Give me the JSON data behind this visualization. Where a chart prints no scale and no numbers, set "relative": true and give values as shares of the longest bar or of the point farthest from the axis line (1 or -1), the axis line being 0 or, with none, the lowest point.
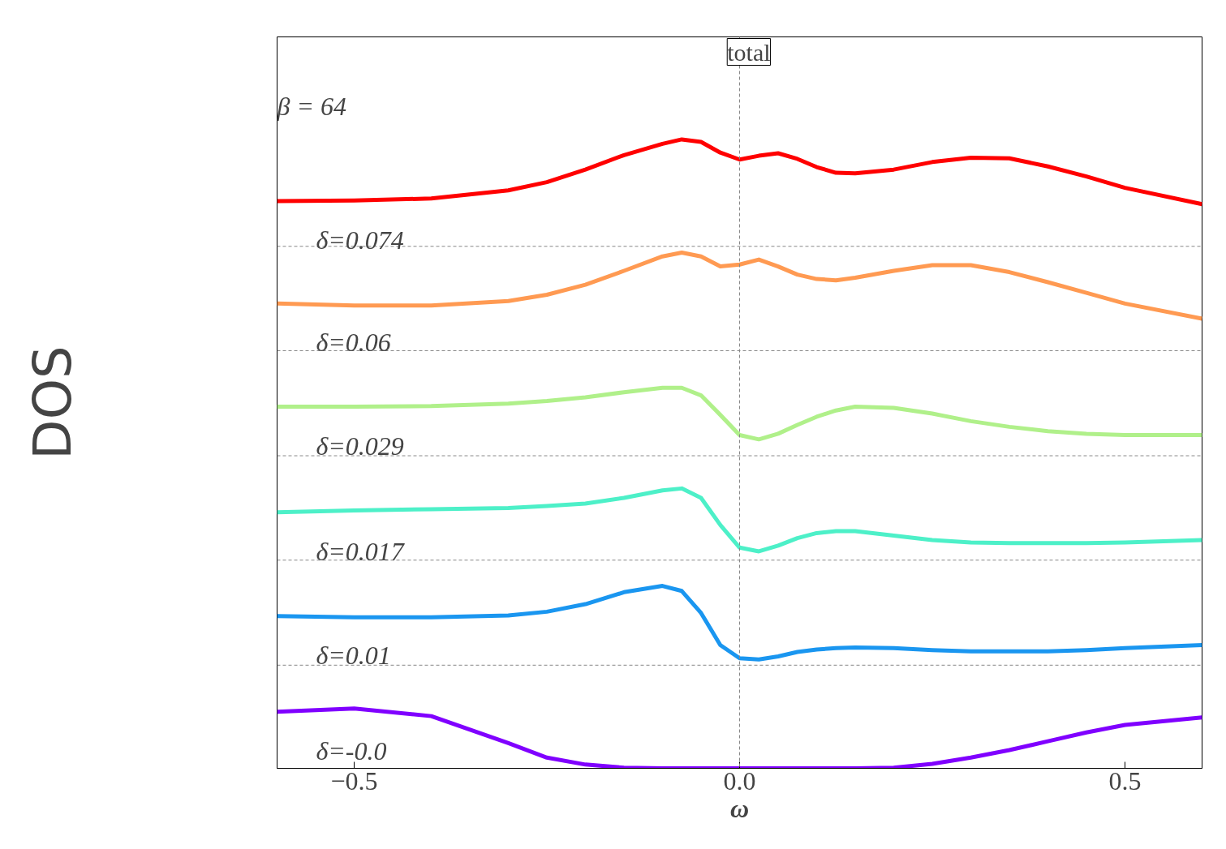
{
  "chart_data": {
    "type": "line",
    "relative": true,
    "xlabel": "ω",
    "ylabel": "DOS",
    "annotations": [
      "total",
      "β = 64"
    ],
    "x": [
      -0.6,
      -0.5,
      -0.4,
      -0.3,
      -0.25,
      -0.2,
      -0.15,
      -0.1,
      -0.075,
      -0.05,
      -0.025,
      0,
      0.025,
      0.05,
      0.075,
      0.1,
      0.125,
      0.15,
      0.2,
      0.25,
      0.3,
      0.35,
      0.4,
      0.45,
      0.5,
      0.6
    ],
    "xlim": [
      -0.6,
      0.6
    ],
    "xticks": [
      {
        "value": -0.5,
        "label": "−0.5"
      },
      {
        "value": 0,
        "label": "0.0"
      },
      {
        "value": 0.5,
        "label": "0.5"
      }
    ],
    "tick_labels": "x",
    "grid": false,
    "line_style": "solid",
    "marker": "none",
    "series": [
      {
        "name": "δ=0.074",
        "color": "#ff0000",
        "values": [
          0.902,
          0.903,
          0.906,
          0.919,
          0.932,
          0.952,
          0.975,
          0.993,
          1.0,
          0.996,
          0.979,
          0.968,
          0.974,
          0.978,
          0.969,
          0.956,
          0.947,
          0.946,
          0.952,
          0.964,
          0.971,
          0.97,
          0.957,
          0.941,
          0.923,
          0.897
        ]
      },
      {
        "name": "δ=0.06",
        "color": "#ff9a52",
        "values": [
          0.739,
          0.736,
          0.736,
          0.743,
          0.753,
          0.769,
          0.791,
          0.814,
          0.82,
          0.814,
          0.798,
          0.801,
          0.809,
          0.798,
          0.785,
          0.778,
          0.776,
          0.78,
          0.791,
          0.8,
          0.8,
          0.789,
          0.773,
          0.756,
          0.739,
          0.715
        ]
      },
      {
        "name": "δ=0.029",
        "color": "#b0f08a",
        "values": [
          0.575,
          0.575,
          0.576,
          0.58,
          0.584,
          0.59,
          0.598,
          0.605,
          0.605,
          0.593,
          0.562,
          0.53,
          0.523,
          0.532,
          0.546,
          0.559,
          0.569,
          0.575,
          0.573,
          0.564,
          0.552,
          0.543,
          0.536,
          0.532,
          0.53,
          0.53
        ]
      },
      {
        "name": "δ=0.017",
        "color": "#4df0c8",
        "values": [
          0.407,
          0.41,
          0.412,
          0.414,
          0.417,
          0.421,
          0.43,
          0.442,
          0.445,
          0.43,
          0.387,
          0.351,
          0.345,
          0.354,
          0.366,
          0.374,
          0.377,
          0.377,
          0.37,
          0.363,
          0.359,
          0.358,
          0.358,
          0.358,
          0.359,
          0.363
        ]
      },
      {
        "name": "δ=0.01",
        "color": "#1a96f0",
        "values": [
          0.242,
          0.24,
          0.24,
          0.243,
          0.249,
          0.261,
          0.28,
          0.29,
          0.282,
          0.247,
          0.196,
          0.175,
          0.173,
          0.178,
          0.185,
          0.189,
          0.191,
          0.192,
          0.191,
          0.188,
          0.186,
          0.186,
          0.186,
          0.188,
          0.191,
          0.196
        ]
      },
      {
        "name": "δ=-0.0",
        "color": "#8000ff",
        "values": [
          0.09,
          0.095,
          0.083,
          0.04,
          0.017,
          0.006,
          0.001,
          0,
          0,
          0,
          0,
          0,
          0,
          0,
          0,
          0,
          0,
          0,
          0.001,
          0.007,
          0.017,
          0.029,
          0.043,
          0.057,
          0.069,
          0.081
        ]
      }
    ],
    "ref_lines": [
      {
        "axis": "x",
        "value": 0,
        "color": "#888888",
        "line_style": "dashed"
      },
      {
        "axis": "y",
        "value": 0.83,
        "color": "#888888",
        "line_style": "dashed"
      },
      {
        "axis": "y",
        "value": 0.664,
        "color": "#888888",
        "line_style": "dashed"
      },
      {
        "axis": "y",
        "value": 0.497,
        "color": "#888888",
        "line_style": "dashed"
      },
      {
        "axis": "y",
        "value": 0.331,
        "color": "#888888",
        "line_style": "dashed"
      },
      {
        "axis": "y",
        "value": 0.164,
        "color": "#888888",
        "line_style": "dashed"
      }
    ]
  }
}
